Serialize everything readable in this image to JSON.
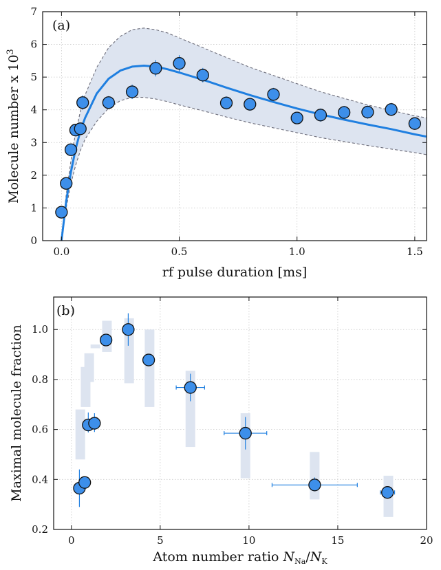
{
  "chart_data": [
    {
      "type": "scatter",
      "panel_label": "(a)",
      "xlabel": "rf pulse duration [ms]",
      "ylabel": "Molecule number x 10",
      "ylabel_sup": "3",
      "xlim": [
        -0.08,
        1.55
      ],
      "ylim": [
        0,
        7
      ],
      "xticks": [
        0.0,
        0.5,
        1.0,
        1.5
      ],
      "xtick_labels": [
        "0.0",
        "0.5",
        "1.0",
        "1.5"
      ],
      "yticks": [
        0,
        1,
        2,
        3,
        4,
        5,
        6,
        7
      ],
      "ytick_labels": [
        "0",
        "1",
        "2",
        "3",
        "4",
        "5",
        "6",
        "7"
      ],
      "grid": true,
      "colors": {
        "marker": "#3d8fea",
        "fit": "#1f7fe0",
        "band": "#dde4f0",
        "band_edge": "#6b6b78"
      },
      "series": [
        {
          "kind": "points",
          "x": [
            0.0,
            0.02,
            0.04,
            0.06,
            0.08,
            0.09,
            0.2,
            0.3,
            0.4,
            0.5,
            0.6,
            0.7,
            0.8,
            0.9,
            1.0,
            1.1,
            1.2,
            1.3,
            1.4,
            1.5
          ],
          "y": [
            0.87,
            1.75,
            2.78,
            3.38,
            3.42,
            4.22,
            4.22,
            4.55,
            5.27,
            5.42,
            5.06,
            4.21,
            4.17,
            4.47,
            3.75,
            3.84,
            3.92,
            3.93,
            4.01,
            3.58
          ],
          "yerr": [
            0.05,
            0.08,
            0.08,
            0.1,
            0.1,
            0.22,
            0.2,
            0.22,
            0.25,
            0.25,
            0.22,
            0.2,
            0.2,
            0.2,
            0.1,
            0.2,
            0.2,
            0.2,
            0.2,
            0.12
          ]
        },
        {
          "kind": "fit",
          "x": [
            0.0,
            0.01,
            0.02,
            0.04,
            0.06,
            0.08,
            0.1,
            0.15,
            0.2,
            0.25,
            0.3,
            0.35,
            0.4,
            0.45,
            0.5,
            0.6,
            0.7,
            0.8,
            0.9,
            1.0,
            1.1,
            1.2,
            1.3,
            1.4,
            1.5,
            1.55
          ],
          "y": [
            0.0,
            0.6,
            1.2,
            2.1,
            2.8,
            3.35,
            3.75,
            4.5,
            4.95,
            5.2,
            5.32,
            5.35,
            5.32,
            5.24,
            5.14,
            4.92,
            4.68,
            4.45,
            4.24,
            4.04,
            3.86,
            3.7,
            3.55,
            3.41,
            3.25,
            3.18
          ],
          "lower": [
            0.0,
            0.5,
            1.0,
            1.75,
            2.3,
            2.75,
            3.1,
            3.65,
            4.05,
            4.28,
            4.38,
            4.38,
            4.33,
            4.25,
            4.15,
            3.97,
            3.78,
            3.6,
            3.45,
            3.3,
            3.15,
            3.03,
            2.91,
            2.8,
            2.69,
            2.63
          ],
          "upper": [
            0.0,
            0.7,
            1.4,
            2.45,
            3.3,
            3.95,
            4.45,
            5.3,
            5.9,
            6.25,
            6.45,
            6.5,
            6.45,
            6.35,
            6.2,
            5.9,
            5.6,
            5.3,
            5.05,
            4.8,
            4.55,
            4.35,
            4.15,
            3.98,
            3.82,
            3.75
          ]
        }
      ]
    },
    {
      "type": "scatter",
      "panel_label": "(b)",
      "xlabel_text": "Atom number ratio ",
      "xlabel_n1": "N",
      "xlabel_s1": "Na",
      "xlabel_slash": "/",
      "xlabel_n2": "N",
      "xlabel_s2": "K",
      "ylabel": "Maximal molecule fraction",
      "xlim": [
        -1.0,
        20
      ],
      "ylim": [
        0.2,
        1.13
      ],
      "xticks": [
        0,
        5,
        10,
        15,
        20
      ],
      "xtick_labels": [
        "0",
        "5",
        "10",
        "15",
        "20"
      ],
      "yticks": [
        0.2,
        0.4,
        0.6,
        0.8,
        1.0
      ],
      "ytick_labels": [
        "0.2",
        "0.4",
        "0.6",
        "0.8",
        "1.0"
      ],
      "grid": true,
      "colors": {
        "marker": "#3d8fea",
        "error": "#1f7fe0",
        "bar": "#dde4f0"
      },
      "points": {
        "x": [
          0.45,
          0.75,
          0.95,
          1.3,
          1.95,
          3.2,
          4.35,
          6.7,
          9.8,
          13.7,
          17.8
        ],
        "y": [
          0.365,
          0.388,
          0.618,
          0.625,
          0.958,
          1.0,
          0.878,
          0.768,
          0.585,
          0.378,
          0.348
        ],
        "yerr_low": [
          0.075,
          0.015,
          0.03,
          0.035,
          0.01,
          0.065,
          0.015,
          0.055,
          0.065,
          0.015,
          0.005
        ],
        "yerr_high": [
          0.075,
          0.015,
          0.05,
          0.04,
          0.01,
          0.065,
          0.015,
          0.055,
          0.065,
          0.03,
          0.005
        ],
        "xerr": [
          0.05,
          0.1,
          0.1,
          0.15,
          0.1,
          0.1,
          0.15,
          0.8,
          1.2,
          2.4,
          0.4
        ]
      },
      "bars": {
        "x": [
          0.5,
          0.8,
          1.0,
          1.35,
          2.0,
          3.25,
          4.4,
          6.7,
          9.8,
          13.7,
          17.85
        ],
        "low": [
          0.48,
          0.69,
          0.79,
          0.925,
          0.91,
          0.785,
          0.69,
          0.53,
          0.405,
          0.32,
          0.25
        ],
        "high": [
          0.68,
          0.85,
          0.905,
          0.94,
          1.035,
          1.045,
          1.0,
          0.835,
          0.665,
          0.51,
          0.415
        ]
      }
    }
  ]
}
